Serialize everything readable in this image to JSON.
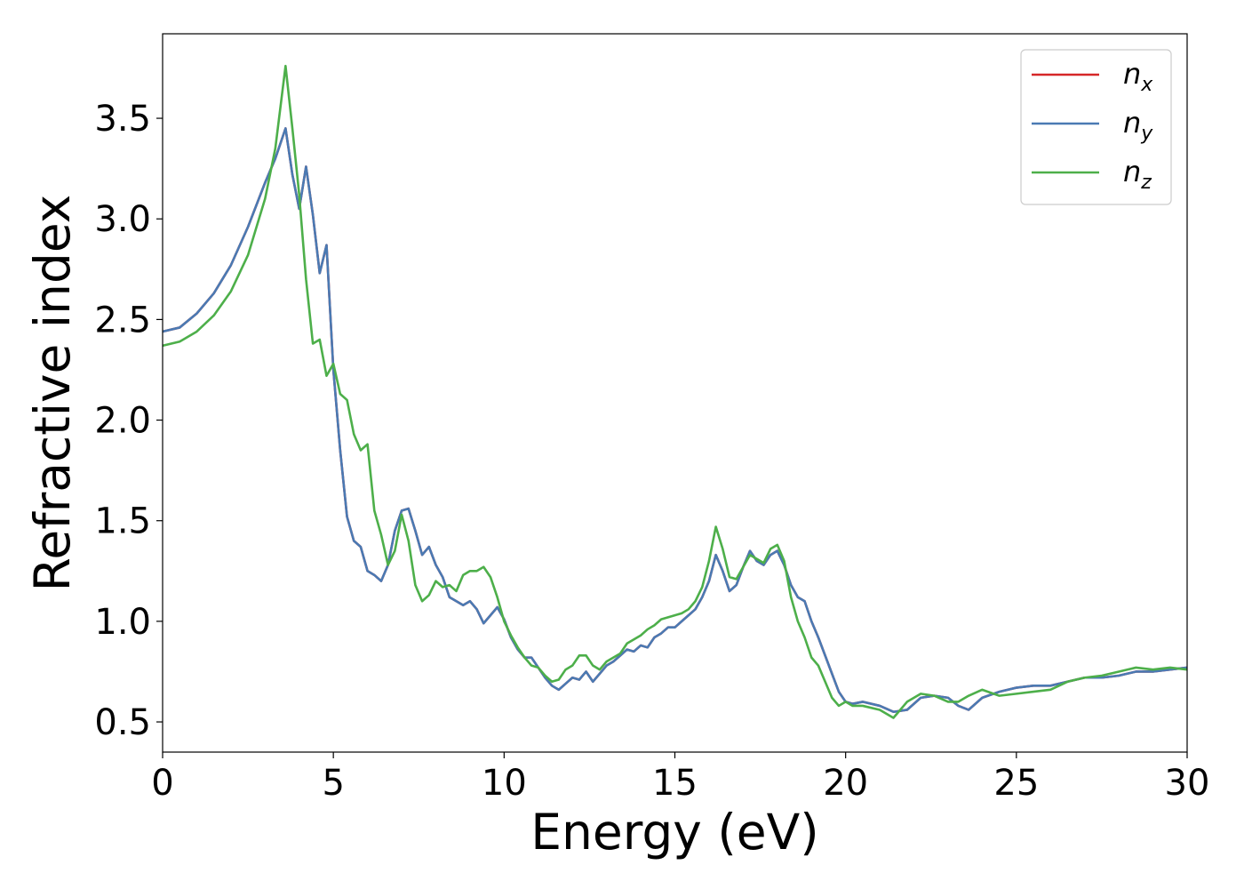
{
  "chart_data": {
    "type": "line",
    "title": "",
    "xlabel": "Energy (eV)",
    "ylabel": "Refractive index",
    "xlim": [
      0,
      30
    ],
    "ylim": [
      0.35,
      3.92
    ],
    "xticks": [
      0,
      5,
      10,
      15,
      20,
      25,
      30
    ],
    "yticks": [
      0.5,
      1.0,
      1.5,
      2.0,
      2.5,
      3.0,
      3.5
    ],
    "xtick_labels": [
      "0",
      "5",
      "10",
      "15",
      "20",
      "25",
      "30"
    ],
    "ytick_labels": [
      "0.5",
      "1.0",
      "1.5",
      "2.0",
      "2.5",
      "3.0",
      "3.5"
    ],
    "grid": false,
    "legend_position": "top-right",
    "series": [
      {
        "name": "n_x",
        "label_base": "n",
        "label_sub": "x",
        "color": "#d62728",
        "x": [
          0,
          0.5,
          1,
          1.5,
          2,
          2.5,
          3,
          3.3,
          3.6,
          3.8,
          4,
          4.2,
          4.4,
          4.6,
          4.8,
          5,
          5.2,
          5.4,
          5.6,
          5.8,
          6,
          6.2,
          6.4,
          6.6,
          6.8,
          7,
          7.2,
          7.4,
          7.6,
          7.8,
          8,
          8.2,
          8.4,
          8.6,
          8.8,
          9,
          9.2,
          9.4,
          9.6,
          9.8,
          10,
          10.2,
          10.4,
          10.6,
          10.8,
          11,
          11.2,
          11.4,
          11.6,
          11.8,
          12,
          12.2,
          12.4,
          12.6,
          12.8,
          13,
          13.2,
          13.4,
          13.6,
          13.8,
          14,
          14.2,
          14.4,
          14.6,
          14.8,
          15,
          15.2,
          15.4,
          15.6,
          15.8,
          16,
          16.2,
          16.4,
          16.6,
          16.8,
          17,
          17.2,
          17.4,
          17.6,
          17.8,
          18,
          18.2,
          18.4,
          18.6,
          18.8,
          19,
          19.2,
          19.4,
          19.6,
          19.8,
          20,
          20.2,
          20.5,
          21,
          21.4,
          21.8,
          22.2,
          22.6,
          23,
          23.3,
          23.6,
          24,
          24.5,
          25,
          25.5,
          26,
          26.5,
          27,
          27.5,
          28,
          28.5,
          29,
          29.5,
          30
        ],
        "y": [
          2.44,
          2.46,
          2.53,
          2.63,
          2.77,
          2.96,
          3.18,
          3.3,
          3.45,
          3.22,
          3.05,
          3.26,
          3.02,
          2.73,
          2.87,
          2.25,
          1.85,
          1.52,
          1.4,
          1.37,
          1.25,
          1.23,
          1.2,
          1.28,
          1.45,
          1.55,
          1.56,
          1.45,
          1.33,
          1.37,
          1.28,
          1.22,
          1.12,
          1.1,
          1.08,
          1.1,
          1.06,
          0.99,
          1.03,
          1.07,
          1.01,
          0.92,
          0.86,
          0.82,
          0.82,
          0.77,
          0.72,
          0.68,
          0.66,
          0.69,
          0.72,
          0.71,
          0.75,
          0.7,
          0.74,
          0.78,
          0.8,
          0.83,
          0.86,
          0.85,
          0.88,
          0.87,
          0.92,
          0.94,
          0.97,
          0.97,
          1.0,
          1.03,
          1.06,
          1.12,
          1.2,
          1.33,
          1.25,
          1.15,
          1.18,
          1.27,
          1.35,
          1.3,
          1.28,
          1.33,
          1.35,
          1.28,
          1.18,
          1.12,
          1.1,
          1.0,
          0.92,
          0.83,
          0.74,
          0.65,
          0.6,
          0.59,
          0.6,
          0.58,
          0.55,
          0.56,
          0.62,
          0.63,
          0.62,
          0.58,
          0.56,
          0.62,
          0.65,
          0.67,
          0.68,
          0.68,
          0.7,
          0.72,
          0.72,
          0.73,
          0.75,
          0.75,
          0.76,
          0.77
        ]
      },
      {
        "name": "n_y",
        "label_base": "n",
        "label_sub": "y",
        "color": "#4a7ab3",
        "x": [
          0,
          0.5,
          1,
          1.5,
          2,
          2.5,
          3,
          3.3,
          3.6,
          3.8,
          4,
          4.2,
          4.4,
          4.6,
          4.8,
          5,
          5.2,
          5.4,
          5.6,
          5.8,
          6,
          6.2,
          6.4,
          6.6,
          6.8,
          7,
          7.2,
          7.4,
          7.6,
          7.8,
          8,
          8.2,
          8.4,
          8.6,
          8.8,
          9,
          9.2,
          9.4,
          9.6,
          9.8,
          10,
          10.2,
          10.4,
          10.6,
          10.8,
          11,
          11.2,
          11.4,
          11.6,
          11.8,
          12,
          12.2,
          12.4,
          12.6,
          12.8,
          13,
          13.2,
          13.4,
          13.6,
          13.8,
          14,
          14.2,
          14.4,
          14.6,
          14.8,
          15,
          15.2,
          15.4,
          15.6,
          15.8,
          16,
          16.2,
          16.4,
          16.6,
          16.8,
          17,
          17.2,
          17.4,
          17.6,
          17.8,
          18,
          18.2,
          18.4,
          18.6,
          18.8,
          19,
          19.2,
          19.4,
          19.6,
          19.8,
          20,
          20.2,
          20.5,
          21,
          21.4,
          21.8,
          22.2,
          22.6,
          23,
          23.3,
          23.6,
          24,
          24.5,
          25,
          25.5,
          26,
          26.5,
          27,
          27.5,
          28,
          28.5,
          29,
          29.5,
          30
        ],
        "y": [
          2.44,
          2.46,
          2.53,
          2.63,
          2.77,
          2.96,
          3.18,
          3.3,
          3.45,
          3.22,
          3.05,
          3.26,
          3.02,
          2.73,
          2.87,
          2.25,
          1.85,
          1.52,
          1.4,
          1.37,
          1.25,
          1.23,
          1.2,
          1.28,
          1.45,
          1.55,
          1.56,
          1.45,
          1.33,
          1.37,
          1.28,
          1.22,
          1.12,
          1.1,
          1.08,
          1.1,
          1.06,
          0.99,
          1.03,
          1.07,
          1.01,
          0.92,
          0.86,
          0.82,
          0.82,
          0.77,
          0.72,
          0.68,
          0.66,
          0.69,
          0.72,
          0.71,
          0.75,
          0.7,
          0.74,
          0.78,
          0.8,
          0.83,
          0.86,
          0.85,
          0.88,
          0.87,
          0.92,
          0.94,
          0.97,
          0.97,
          1.0,
          1.03,
          1.06,
          1.12,
          1.2,
          1.33,
          1.25,
          1.15,
          1.18,
          1.27,
          1.35,
          1.3,
          1.28,
          1.33,
          1.35,
          1.28,
          1.18,
          1.12,
          1.1,
          1.0,
          0.92,
          0.83,
          0.74,
          0.65,
          0.6,
          0.59,
          0.6,
          0.58,
          0.55,
          0.56,
          0.62,
          0.63,
          0.62,
          0.58,
          0.56,
          0.62,
          0.65,
          0.67,
          0.68,
          0.68,
          0.7,
          0.72,
          0.72,
          0.73,
          0.75,
          0.75,
          0.76,
          0.77
        ]
      },
      {
        "name": "n_z",
        "label_base": "n",
        "label_sub": "z",
        "color": "#4daf4a",
        "x": [
          0,
          0.5,
          1,
          1.5,
          2,
          2.5,
          3,
          3.3,
          3.6,
          3.8,
          4,
          4.2,
          4.4,
          4.6,
          4.8,
          5,
          5.2,
          5.4,
          5.6,
          5.8,
          6,
          6.2,
          6.4,
          6.6,
          6.8,
          7,
          7.2,
          7.4,
          7.6,
          7.8,
          8,
          8.2,
          8.4,
          8.6,
          8.8,
          9,
          9.2,
          9.4,
          9.6,
          9.8,
          10,
          10.2,
          10.4,
          10.6,
          10.8,
          11,
          11.2,
          11.4,
          11.6,
          11.8,
          12,
          12.2,
          12.4,
          12.6,
          12.8,
          13,
          13.2,
          13.4,
          13.6,
          13.8,
          14,
          14.2,
          14.4,
          14.6,
          14.8,
          15,
          15.2,
          15.4,
          15.6,
          15.8,
          16,
          16.2,
          16.4,
          16.6,
          16.8,
          17,
          17.2,
          17.4,
          17.6,
          17.8,
          18,
          18.2,
          18.4,
          18.6,
          18.8,
          19,
          19.2,
          19.4,
          19.6,
          19.8,
          20,
          20.2,
          20.5,
          21,
          21.4,
          21.8,
          22.2,
          22.6,
          23,
          23.3,
          23.6,
          24,
          24.5,
          25,
          25.5,
          26,
          26.5,
          27,
          27.5,
          28,
          28.5,
          29,
          29.5,
          30
        ],
        "y": [
          2.37,
          2.39,
          2.44,
          2.52,
          2.64,
          2.82,
          3.1,
          3.35,
          3.76,
          3.45,
          3.12,
          2.7,
          2.38,
          2.4,
          2.22,
          2.28,
          2.13,
          2.1,
          1.93,
          1.85,
          1.88,
          1.55,
          1.43,
          1.28,
          1.35,
          1.53,
          1.4,
          1.18,
          1.1,
          1.13,
          1.2,
          1.17,
          1.18,
          1.15,
          1.23,
          1.25,
          1.25,
          1.27,
          1.22,
          1.12,
          1.0,
          0.93,
          0.87,
          0.82,
          0.78,
          0.77,
          0.73,
          0.7,
          0.71,
          0.76,
          0.78,
          0.83,
          0.83,
          0.78,
          0.76,
          0.8,
          0.82,
          0.84,
          0.89,
          0.91,
          0.93,
          0.96,
          0.98,
          1.01,
          1.02,
          1.03,
          1.04,
          1.06,
          1.1,
          1.17,
          1.3,
          1.47,
          1.36,
          1.22,
          1.21,
          1.27,
          1.33,
          1.31,
          1.29,
          1.36,
          1.38,
          1.3,
          1.12,
          1.0,
          0.92,
          0.82,
          0.78,
          0.7,
          0.62,
          0.58,
          0.6,
          0.58,
          0.58,
          0.56,
          0.52,
          0.6,
          0.64,
          0.63,
          0.6,
          0.6,
          0.63,
          0.66,
          0.63,
          0.64,
          0.65,
          0.66,
          0.7,
          0.72,
          0.73,
          0.75,
          0.77,
          0.76,
          0.77,
          0.76
        ]
      }
    ]
  }
}
